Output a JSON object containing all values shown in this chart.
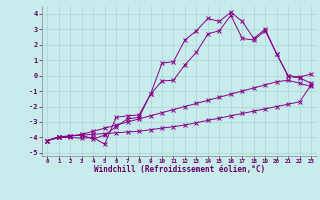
{
  "xlabel": "Windchill (Refroidissement éolien,°C)",
  "background_color": "#c8ecec",
  "grid_color": "#aad4d4",
  "line_color": "#880088",
  "xlim": [
    -0.5,
    23.5
  ],
  "ylim": [
    -5.2,
    4.5
  ],
  "xticks": [
    0,
    1,
    2,
    3,
    4,
    5,
    6,
    7,
    8,
    9,
    10,
    11,
    12,
    13,
    14,
    15,
    16,
    17,
    18,
    19,
    20,
    21,
    22,
    23
  ],
  "yticks": [
    -5,
    -4,
    -3,
    -2,
    -1,
    0,
    1,
    2,
    3,
    4
  ],
  "series": [
    {
      "x": [
        0,
        1,
        2,
        3,
        4,
        5,
        6,
        7,
        8,
        9,
        10,
        11,
        12,
        13,
        14,
        15,
        16,
        17,
        18,
        19,
        20,
        21,
        22,
        23
      ],
      "y": [
        -4.2,
        -4.0,
        -4.0,
        -4.05,
        -4.0,
        -4.45,
        -2.7,
        -2.6,
        -2.55,
        -1.2,
        0.8,
        0.9,
        2.3,
        2.9,
        3.7,
        3.5,
        4.1,
        3.5,
        2.4,
        3.0,
        1.4,
        -0.0,
        -0.1,
        0.1
      ]
    },
    {
      "x": [
        0,
        1,
        2,
        3,
        4,
        5,
        6,
        7,
        8,
        9,
        10,
        11,
        12,
        13,
        14,
        15,
        16,
        17,
        18,
        19,
        20,
        21,
        22,
        23
      ],
      "y": [
        -4.2,
        -4.0,
        -3.9,
        -3.85,
        -4.1,
        -3.85,
        -3.3,
        -2.8,
        -2.7,
        -1.2,
        -0.35,
        -0.3,
        0.7,
        1.5,
        2.7,
        2.9,
        3.9,
        2.4,
        2.3,
        2.9,
        1.4,
        -0.05,
        -0.15,
        -0.5
      ]
    },
    {
      "x": [
        0,
        1,
        2,
        3,
        4,
        5,
        6,
        7,
        8,
        9,
        10,
        11,
        12,
        13,
        14,
        15,
        16,
        17,
        18,
        19,
        20,
        21,
        22,
        23
      ],
      "y": [
        -4.2,
        -4.0,
        -3.9,
        -3.8,
        -3.6,
        -3.4,
        -3.2,
        -3.0,
        -2.8,
        -2.6,
        -2.4,
        -2.2,
        -2.0,
        -1.8,
        -1.6,
        -1.4,
        -1.2,
        -1.0,
        -0.8,
        -0.6,
        -0.4,
        -0.3,
        -0.5,
        -0.7
      ]
    },
    {
      "x": [
        0,
        1,
        2,
        3,
        4,
        5,
        6,
        7,
        8,
        9,
        10,
        11,
        12,
        13,
        14,
        15,
        16,
        17,
        18,
        19,
        20,
        21,
        22,
        23
      ],
      "y": [
        -4.2,
        -3.95,
        -3.9,
        -3.85,
        -3.8,
        -3.75,
        -3.7,
        -3.65,
        -3.6,
        -3.5,
        -3.4,
        -3.3,
        -3.2,
        -3.05,
        -2.9,
        -2.75,
        -2.6,
        -2.45,
        -2.3,
        -2.15,
        -2.0,
        -1.85,
        -1.7,
        -0.6
      ]
    }
  ]
}
